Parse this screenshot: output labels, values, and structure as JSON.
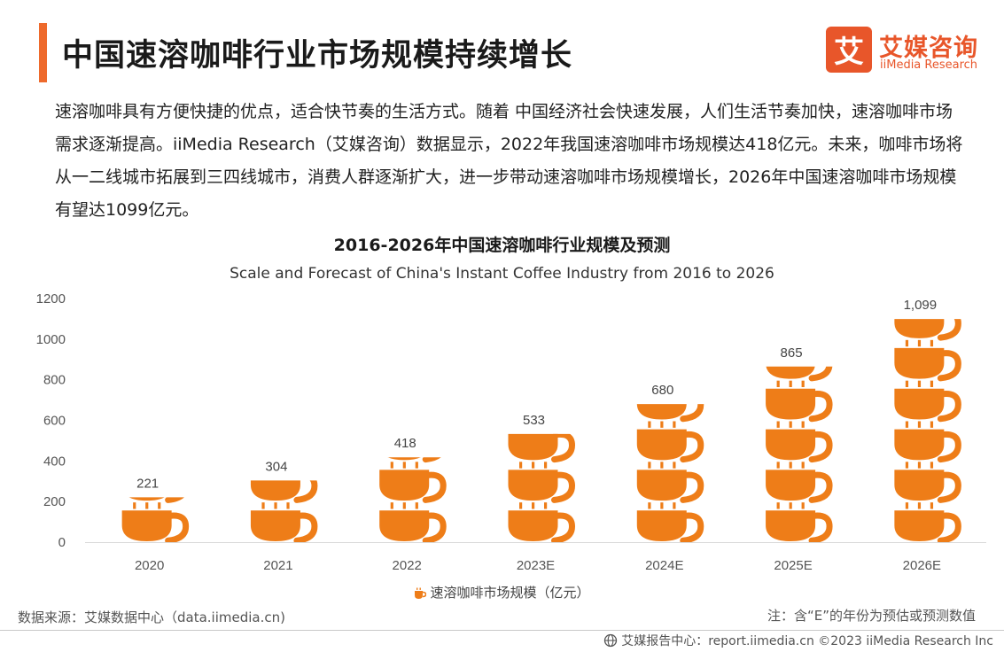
{
  "header": {
    "title": "中国速溶咖啡行业市场规模持续增长",
    "logo_cn": "艾媒咨询",
    "logo_en": "iiMedia Research",
    "logo_mark_char": "艾"
  },
  "intro": "速溶咖啡具有方便快捷的优点，适合快节奏的生活方式。随着 中国经济社会快速发展，人们生活节奏加快，速溶咖啡市场需求逐渐提高。iiMedia Research（艾媒咨询）数据显示，2022年我国速溶咖啡市场规模达418亿元。未来，咖啡市场将从一二线城市拓展到三四线城市，消费人群逐渐扩大，进一步带动速溶咖啡市场规模增长，2026年中国速溶咖啡市场规模有望达1099亿元。",
  "chart_data": {
    "type": "bar",
    "title": "2016-2026年中国速溶咖啡行业规模及预测",
    "subtitle": "Scale and Forecast of China's Instant Coffee Industry from 2016 to 2026",
    "categories": [
      "2020",
      "2021",
      "2022",
      "2023E",
      "2024E",
      "2025E",
      "2026E"
    ],
    "series": [
      {
        "name": "速溶咖啡市场规模（亿元）",
        "values": [
          221,
          304,
          418,
          533,
          680,
          865,
          1099
        ],
        "labels": [
          "221",
          "304",
          "418",
          "533",
          "680",
          "865",
          "1,099"
        ]
      }
    ],
    "ylim": [
      0,
      1200
    ],
    "yticks": [
      0,
      200,
      400,
      600,
      800,
      1000,
      1200
    ],
    "mark_style": "pictogram-coffee-cup",
    "unit_per_cup": 200,
    "bar_color": "#ee7d18",
    "legend_position": "bottom-center"
  },
  "footer": {
    "source": "数据来源：艾媒数据中心（data.iimedia.cn)",
    "note": "注：含“E”的年份为预估或预测数值",
    "copyright": "艾媒报告中心：report.iimedia.cn  ©2023  iiMedia Research  Inc"
  },
  "colors": {
    "accent": "#ee6a2c",
    "cup": "#ee7d18",
    "logo": "#e8562a"
  }
}
